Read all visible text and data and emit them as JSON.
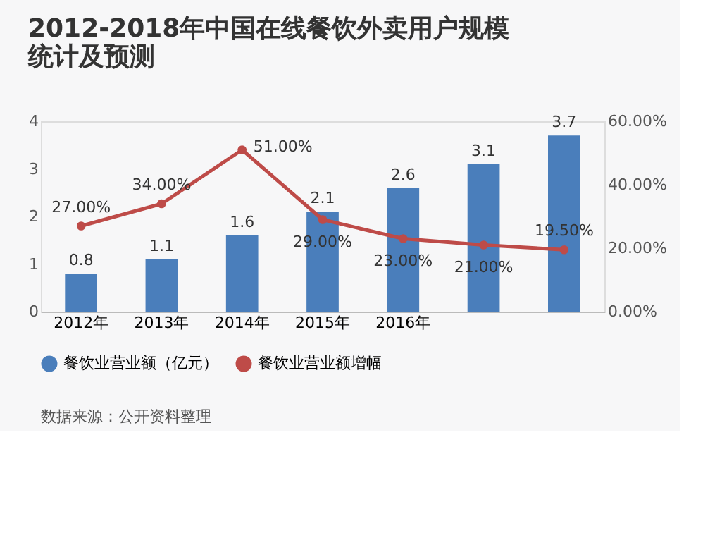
{
  "chart_data": {
    "type": "bar",
    "title": "2012-2018年中国在线餐饮外卖用户规模统计及预测",
    "categories": [
      "2012年",
      "2013年",
      "2014年",
      "2015年",
      "2016年",
      null,
      null
    ],
    "series": [
      {
        "name": "餐饮业营业额（亿元）",
        "type": "bar",
        "color": "#4a7ebb",
        "values": [
          0.8,
          1.1,
          1.6,
          2.1,
          2.6,
          3.1,
          3.7
        ],
        "data_labels": true
      },
      {
        "name": "餐饮业营业额增幅",
        "type": "line",
        "axis": "y2",
        "color": "#be4b48",
        "marker": "circle",
        "values": [
          27,
          34,
          51,
          29,
          23,
          21,
          19.5
        ],
        "value_labels": [
          "27.00%",
          "34.00%",
          "51.00%",
          "29.00%",
          "23.00%",
          "21.00%",
          "19.50%"
        ]
      }
    ],
    "ylim": [
      0,
      4
    ],
    "yticks": [
      0,
      1,
      2,
      3,
      4
    ],
    "y2lim": [
      0,
      60
    ],
    "y2ticks": [
      {
        "value": 0,
        "label": "0.00%"
      },
      {
        "value": 20,
        "label": "20.00%"
      },
      {
        "value": 40,
        "label": "40.00%"
      },
      {
        "value": 60,
        "label": "60.00%"
      }
    ],
    "grid": false,
    "legend": "bottom",
    "annotations": [
      "数据来源：公开资料整理"
    ]
  }
}
